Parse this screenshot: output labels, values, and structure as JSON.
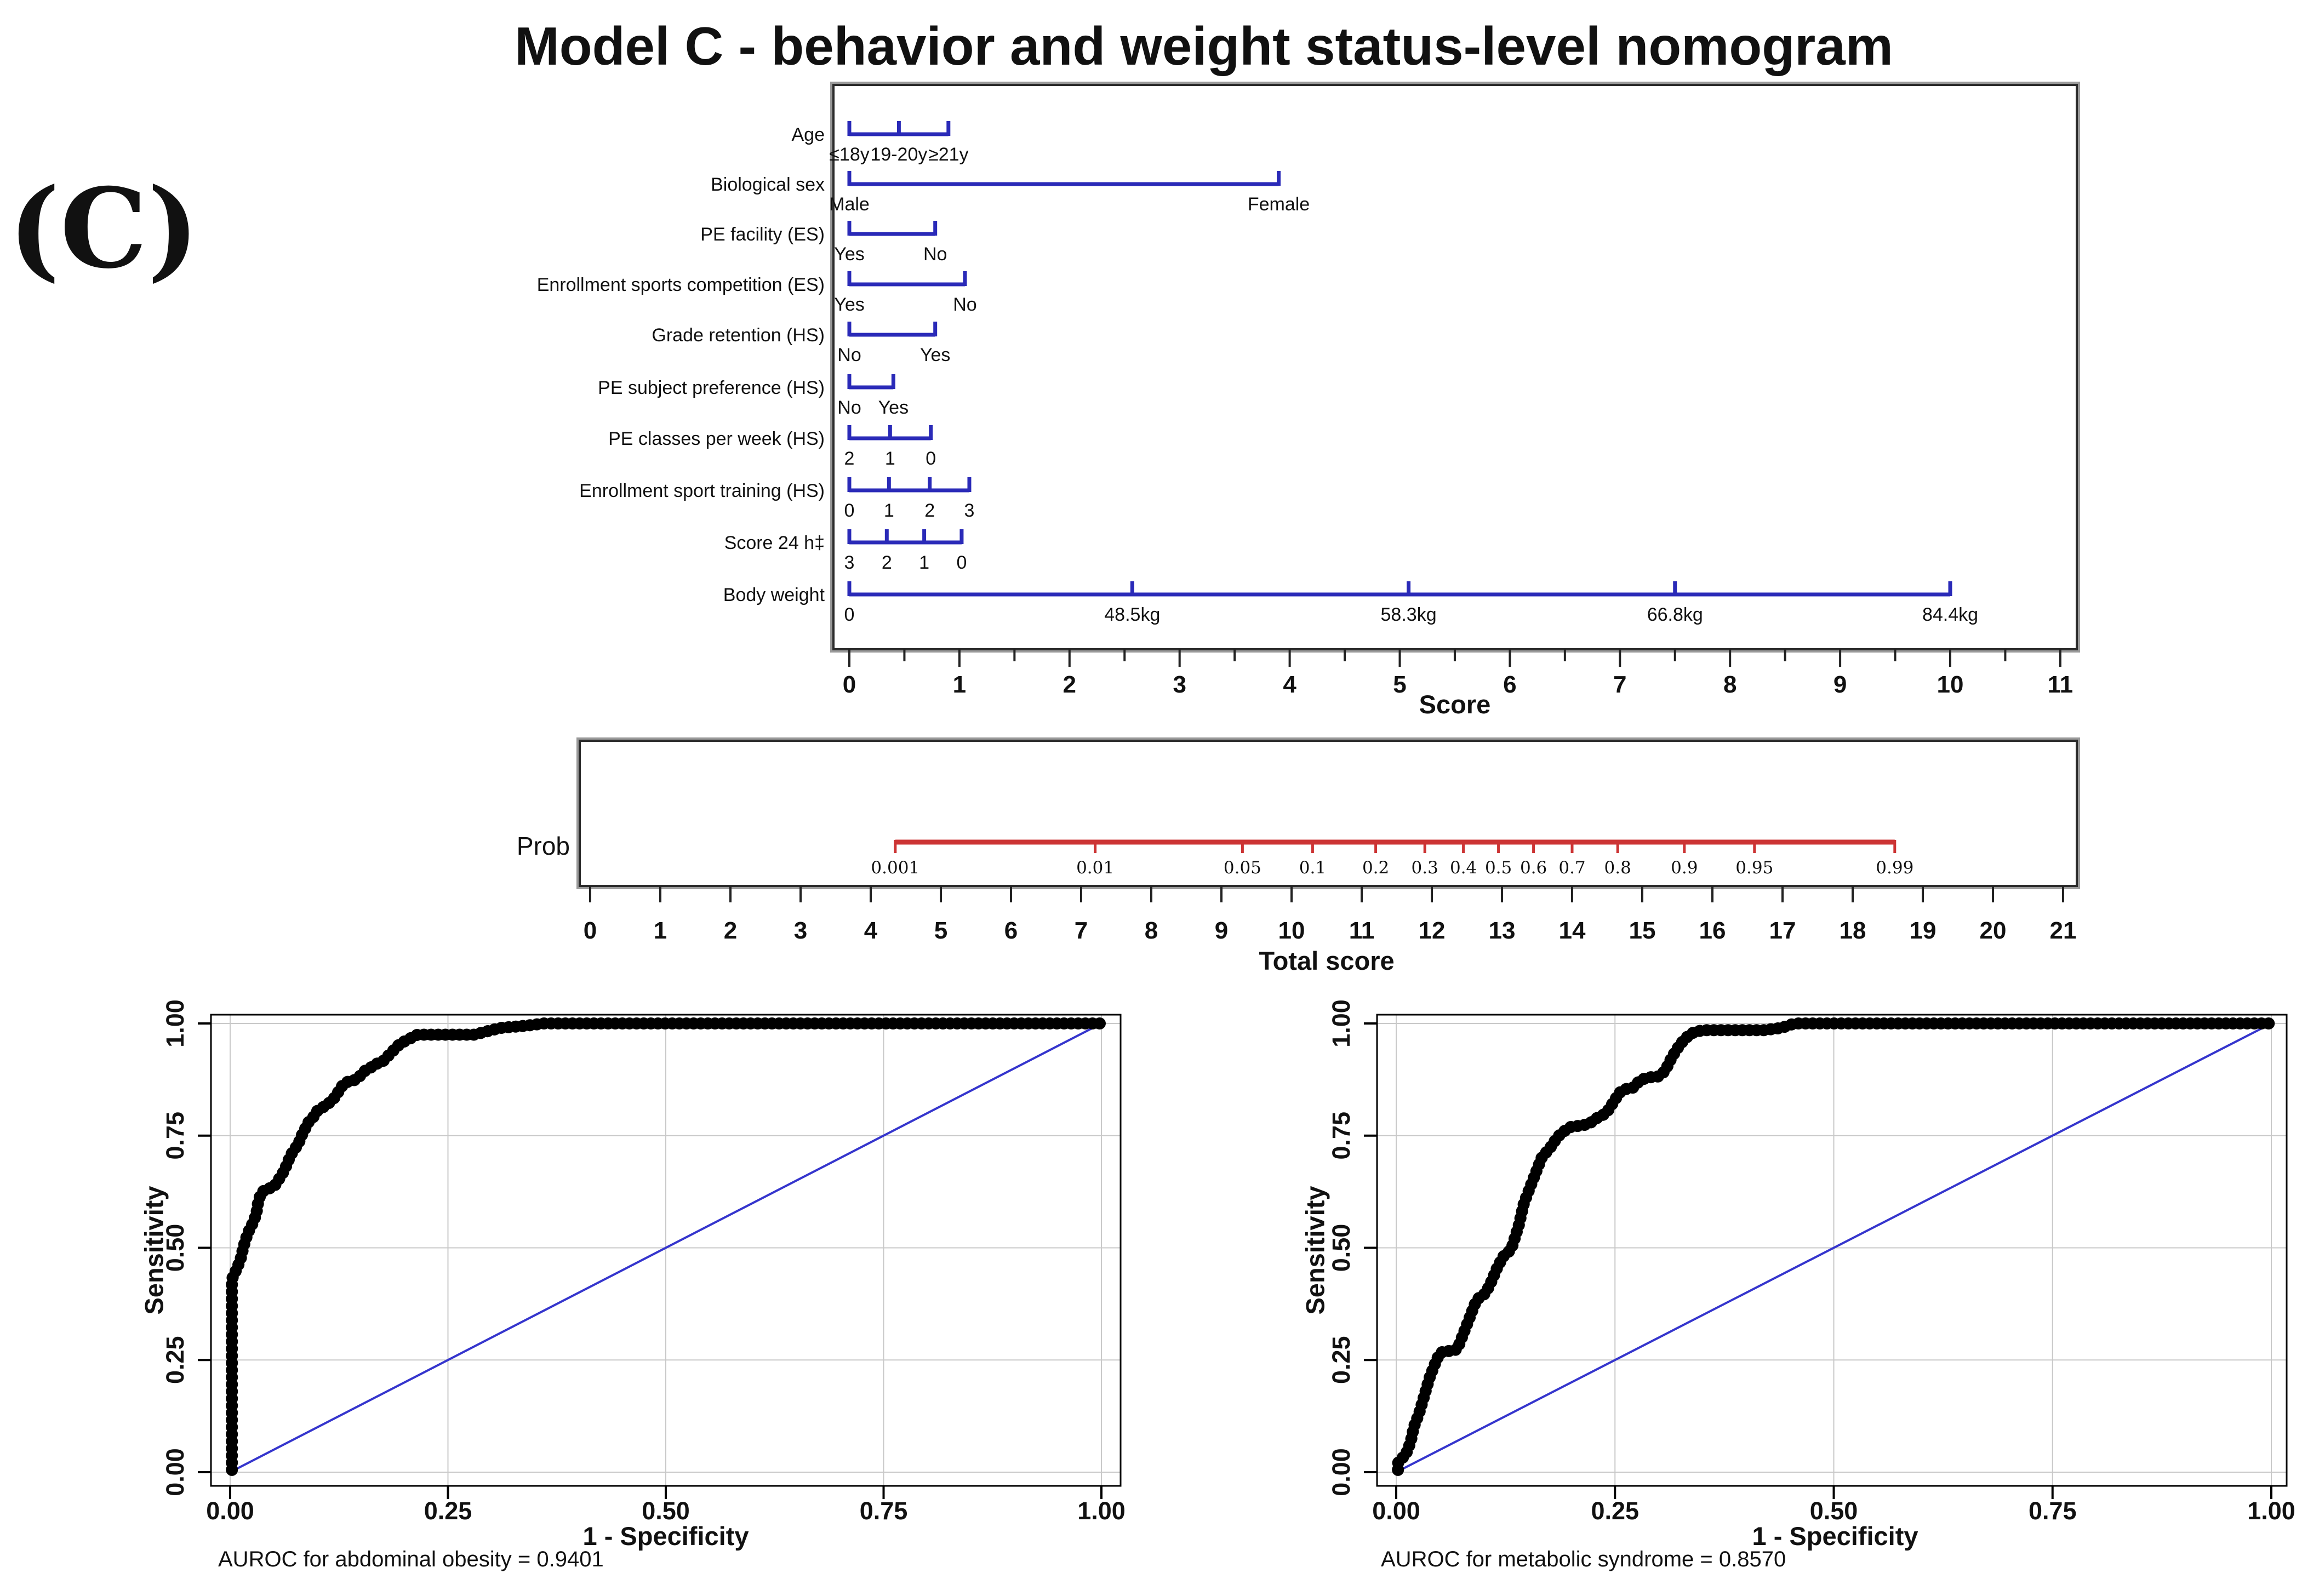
{
  "figure_label": "(C)",
  "title": "Model C - behavior and weight status-level nomogram",
  "nomogram_panel": {
    "axis_label": "Score"
  },
  "prob_panel": {
    "row_label": "Prob",
    "axis_label": "Total score"
  },
  "roc_left": {
    "ylabel": "Sensitivity",
    "xlabel": "1 - Specificity",
    "caption": "AUROC for abdominal obesity = 0.9401"
  },
  "roc_right": {
    "ylabel": "Sensitivity",
    "xlabel": "1 - Specificity",
    "caption": "AUROC for metabolic syndrome = 0.8570"
  },
  "colors": {
    "nomogram_line": "#2a2ab8",
    "prob_line": "#cc3434",
    "roc_diagonal": "#3535cd",
    "roc_curve": "#000000",
    "grid": "#c9c9c9",
    "frame_dark": "#2b2b2b",
    "frame_light": "#9a9a9a",
    "tick": "#222222"
  },
  "chart_data": [
    {
      "type": "nomogram",
      "title": "Model C - behavior and weight status-level nomogram",
      "axis": {
        "label": "Score",
        "min": 0,
        "max": 11,
        "major_step": 1,
        "minor_step": 0.5
      },
      "rows": [
        {
          "name": "Age",
          "ticks": [
            {
              "score": 0,
              "label": "≤18y"
            },
            {
              "score": 0.45,
              "label": "19-20y"
            },
            {
              "score": 0.9,
              "label": "≥21y"
            }
          ]
        },
        {
          "name": "Biological sex",
          "ticks": [
            {
              "score": 0,
              "label": "Male"
            },
            {
              "score": 3.9,
              "label": "Female"
            }
          ]
        },
        {
          "name": "PE facility (ES)",
          "ticks": [
            {
              "score": 0,
              "label": "Yes"
            },
            {
              "score": 0.78,
              "label": "No"
            }
          ]
        },
        {
          "name": "Enrollment sports competition (ES)",
          "ticks": [
            {
              "score": 0,
              "label": "Yes"
            },
            {
              "score": 1.05,
              "label": "No"
            }
          ]
        },
        {
          "name": "Grade retention (HS)",
          "ticks": [
            {
              "score": 0,
              "label": "No"
            },
            {
              "score": 0.78,
              "label": "Yes"
            }
          ]
        },
        {
          "name": "PE subject preference (HS)",
          "ticks": [
            {
              "score": 0,
              "label": "No"
            },
            {
              "score": 0.4,
              "label": "Yes"
            }
          ]
        },
        {
          "name": "PE classes per week (HS)",
          "ticks": [
            {
              "score": 0,
              "label": "2"
            },
            {
              "score": 0.37,
              "label": "1"
            },
            {
              "score": 0.74,
              "label": "0"
            }
          ]
        },
        {
          "name": "Enrollment sport training (HS)",
          "ticks": [
            {
              "score": 0,
              "label": "0"
            },
            {
              "score": 0.36,
              "label": "1"
            },
            {
              "score": 0.73,
              "label": "2"
            },
            {
              "score": 1.09,
              "label": "3"
            }
          ]
        },
        {
          "name": "Score 24 h‡",
          "ticks": [
            {
              "score": 0,
              "label": "3"
            },
            {
              "score": 0.34,
              "label": "2"
            },
            {
              "score": 0.68,
              "label": "1"
            },
            {
              "score": 1.02,
              "label": "0"
            }
          ]
        },
        {
          "name": "Body weight",
          "ticks": [
            {
              "score": 0,
              "label": "0"
            },
            {
              "score": 2.57,
              "label": "48.5kg"
            },
            {
              "score": 5.08,
              "label": "58.3kg"
            },
            {
              "score": 7.5,
              "label": "66.8kg"
            },
            {
              "score": 10,
              "label": "84.4kg"
            }
          ]
        }
      ]
    },
    {
      "type": "probability-scale",
      "row_label": "Prob",
      "axis": {
        "label": "Total score",
        "min": 0,
        "max": 21,
        "step": 1
      },
      "ticks": [
        {
          "p": "0.001",
          "score": 4.35
        },
        {
          "p": "0.01",
          "score": 7.2
        },
        {
          "p": "0.05",
          "score": 9.3
        },
        {
          "p": "0.1",
          "score": 10.3
        },
        {
          "p": "0.2",
          "score": 11.2
        },
        {
          "p": "0.3",
          "score": 11.9
        },
        {
          "p": "0.4",
          "score": 12.45
        },
        {
          "p": "0.5",
          "score": 12.95
        },
        {
          "p": "0.6",
          "score": 13.45
        },
        {
          "p": "0.7",
          "score": 14.0
        },
        {
          "p": "0.8",
          "score": 14.65
        },
        {
          "p": "0.9",
          "score": 15.6
        },
        {
          "p": "0.95",
          "score": 16.6
        },
        {
          "p": "0.99",
          "score": 18.6
        }
      ]
    },
    {
      "type": "roc",
      "caption": "AUROC for abdominal obesity = 0.9401",
      "auroc": 0.9401,
      "xlabel": "1 - Specificity",
      "ylabel": "Sensitivity",
      "xticks": [
        "0.00",
        "0.25",
        "0.50",
        "0.75",
        "1.00"
      ],
      "yticks": [
        "0.00",
        "0.25",
        "0.50",
        "0.75",
        "1.00"
      ],
      "xlim": [
        0,
        1
      ],
      "ylim": [
        0,
        1
      ],
      "grid": true,
      "diagonal": true,
      "curve": [
        [
          0.002,
          0.005
        ],
        [
          0.002,
          0.08
        ],
        [
          0.002,
          0.16
        ],
        [
          0.002,
          0.24
        ],
        [
          0.002,
          0.32
        ],
        [
          0.002,
          0.43
        ],
        [
          0.008,
          0.455
        ],
        [
          0.012,
          0.475
        ],
        [
          0.015,
          0.5
        ],
        [
          0.018,
          0.52
        ],
        [
          0.022,
          0.54
        ],
        [
          0.026,
          0.555
        ],
        [
          0.03,
          0.575
        ],
        [
          0.032,
          0.6
        ],
        [
          0.035,
          0.62
        ],
        [
          0.04,
          0.63
        ],
        [
          0.05,
          0.635
        ],
        [
          0.055,
          0.65
        ],
        [
          0.06,
          0.665
        ],
        [
          0.065,
          0.685
        ],
        [
          0.068,
          0.7
        ],
        [
          0.072,
          0.715
        ],
        [
          0.078,
          0.73
        ],
        [
          0.082,
          0.75
        ],
        [
          0.086,
          0.765
        ],
        [
          0.09,
          0.78
        ],
        [
          0.095,
          0.79
        ],
        [
          0.1,
          0.805
        ],
        [
          0.108,
          0.815
        ],
        [
          0.115,
          0.825
        ],
        [
          0.12,
          0.835
        ],
        [
          0.125,
          0.85
        ],
        [
          0.13,
          0.865
        ],
        [
          0.135,
          0.87
        ],
        [
          0.145,
          0.875
        ],
        [
          0.15,
          0.885
        ],
        [
          0.155,
          0.895
        ],
        [
          0.16,
          0.9
        ],
        [
          0.168,
          0.91
        ],
        [
          0.175,
          0.915
        ],
        [
          0.18,
          0.925
        ],
        [
          0.185,
          0.935
        ],
        [
          0.19,
          0.945
        ],
        [
          0.195,
          0.955
        ],
        [
          0.2,
          0.96
        ],
        [
          0.205,
          0.965
        ],
        [
          0.21,
          0.97
        ],
        [
          0.215,
          0.975
        ],
        [
          0.25,
          0.975
        ],
        [
          0.28,
          0.975
        ],
        [
          0.3,
          0.985
        ],
        [
          0.31,
          0.99
        ],
        [
          0.34,
          0.995
        ],
        [
          0.36,
          1.0
        ],
        [
          0.5,
          1.0
        ],
        [
          0.7,
          1.0
        ],
        [
          0.85,
          1.0
        ],
        [
          1.0,
          1.0
        ]
      ]
    },
    {
      "type": "roc",
      "caption": "AUROC for metabolic syndrome = 0.8570",
      "auroc": 0.857,
      "xlabel": "1 - Specificity",
      "ylabel": "Sensitivity",
      "xticks": [
        "0.00",
        "0.25",
        "0.50",
        "0.75",
        "1.00"
      ],
      "yticks": [
        "0.00",
        "0.25",
        "0.50",
        "0.75",
        "1.00"
      ],
      "xlim": [
        0,
        1
      ],
      "ylim": [
        0,
        1
      ],
      "grid": true,
      "diagonal": true,
      "curve": [
        [
          0.002,
          0.005
        ],
        [
          0.002,
          0.02
        ],
        [
          0.005,
          0.03
        ],
        [
          0.01,
          0.035
        ],
        [
          0.013,
          0.05
        ],
        [
          0.016,
          0.065
        ],
        [
          0.018,
          0.08
        ],
        [
          0.02,
          0.1
        ],
        [
          0.023,
          0.115
        ],
        [
          0.026,
          0.13
        ],
        [
          0.029,
          0.15
        ],
        [
          0.032,
          0.17
        ],
        [
          0.035,
          0.19
        ],
        [
          0.038,
          0.21
        ],
        [
          0.042,
          0.23
        ],
        [
          0.046,
          0.25
        ],
        [
          0.05,
          0.265
        ],
        [
          0.055,
          0.27
        ],
        [
          0.065,
          0.27
        ],
        [
          0.07,
          0.275
        ],
        [
          0.074,
          0.295
        ],
        [
          0.078,
          0.315
        ],
        [
          0.082,
          0.335
        ],
        [
          0.086,
          0.355
        ],
        [
          0.09,
          0.375
        ],
        [
          0.095,
          0.39
        ],
        [
          0.1,
          0.395
        ],
        [
          0.105,
          0.41
        ],
        [
          0.11,
          0.43
        ],
        [
          0.114,
          0.45
        ],
        [
          0.118,
          0.465
        ],
        [
          0.122,
          0.48
        ],
        [
          0.128,
          0.49
        ],
        [
          0.132,
          0.5
        ],
        [
          0.136,
          0.525
        ],
        [
          0.14,
          0.55
        ],
        [
          0.143,
          0.575
        ],
        [
          0.146,
          0.6
        ],
        [
          0.15,
          0.62
        ],
        [
          0.154,
          0.64
        ],
        [
          0.158,
          0.66
        ],
        [
          0.162,
          0.68
        ],
        [
          0.166,
          0.7
        ],
        [
          0.17,
          0.71
        ],
        [
          0.175,
          0.72
        ],
        [
          0.18,
          0.735
        ],
        [
          0.186,
          0.75
        ],
        [
          0.192,
          0.76
        ],
        [
          0.2,
          0.77
        ],
        [
          0.21,
          0.772
        ],
        [
          0.22,
          0.776
        ],
        [
          0.23,
          0.79
        ],
        [
          0.24,
          0.8
        ],
        [
          0.245,
          0.815
        ],
        [
          0.25,
          0.83
        ],
        [
          0.255,
          0.845
        ],
        [
          0.26,
          0.853
        ],
        [
          0.27,
          0.856
        ],
        [
          0.276,
          0.868
        ],
        [
          0.28,
          0.875
        ],
        [
          0.29,
          0.88
        ],
        [
          0.3,
          0.882
        ],
        [
          0.305,
          0.89
        ],
        [
          0.31,
          0.905
        ],
        [
          0.315,
          0.925
        ],
        [
          0.32,
          0.94
        ],
        [
          0.325,
          0.955
        ],
        [
          0.33,
          0.965
        ],
        [
          0.335,
          0.975
        ],
        [
          0.34,
          0.98
        ],
        [
          0.35,
          0.985
        ],
        [
          0.38,
          0.985
        ],
        [
          0.42,
          0.985
        ],
        [
          0.44,
          0.99
        ],
        [
          0.455,
          1.0
        ],
        [
          0.6,
          1.0
        ],
        [
          0.8,
          1.0
        ],
        [
          1.0,
          1.0
        ]
      ]
    }
  ]
}
